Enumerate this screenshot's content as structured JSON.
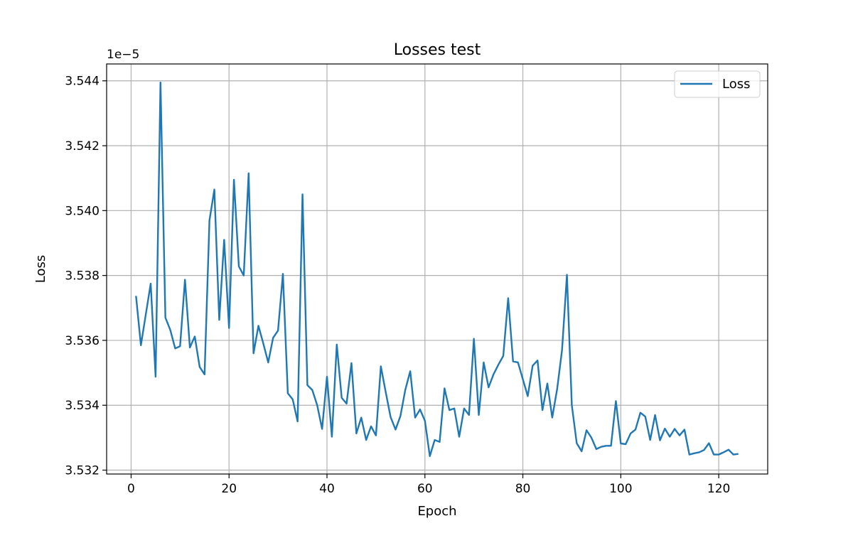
{
  "chart_data": {
    "type": "line",
    "title": "Losses test",
    "xlabel": "Epoch",
    "ylabel": "Loss",
    "y_offset_label": "1e−5",
    "xlim": [
      -5,
      130
    ],
    "ylim": [
      3.53188,
      3.54452
    ],
    "x_ticks": [
      0,
      20,
      40,
      60,
      80,
      100,
      120
    ],
    "x_tick_labels": [
      "0",
      "20",
      "40",
      "60",
      "80",
      "100",
      "120"
    ],
    "y_ticks": [
      3.532,
      3.534,
      3.536,
      3.538,
      3.54,
      3.542,
      3.544
    ],
    "y_tick_labels": [
      "3.532",
      "3.534",
      "3.536",
      "3.538",
      "3.540",
      "3.542",
      "3.544"
    ],
    "grid": true,
    "legend_position": "top-right",
    "series": [
      {
        "name": "Loss",
        "color": "#1f77b4",
        "x": [
          1,
          2,
          3,
          4,
          5,
          6,
          7,
          8,
          9,
          10,
          11,
          12,
          13,
          14,
          15,
          16,
          17,
          18,
          19,
          20,
          21,
          22,
          23,
          24,
          25,
          26,
          27,
          28,
          29,
          30,
          31,
          32,
          33,
          34,
          35,
          36,
          37,
          38,
          39,
          40,
          41,
          42,
          43,
          44,
          45,
          46,
          47,
          48,
          49,
          50,
          51,
          52,
          53,
          54,
          55,
          56,
          57,
          58,
          59,
          60,
          61,
          62,
          63,
          64,
          65,
          66,
          67,
          68,
          69,
          70,
          71,
          72,
          73,
          74,
          75,
          76,
          77,
          78,
          79,
          80,
          81,
          82,
          83,
          84,
          85,
          86,
          87,
          88,
          89,
          90,
          91,
          92,
          93,
          94,
          95,
          96,
          97,
          98,
          99,
          100,
          101,
          102,
          103,
          104,
          105,
          106,
          107,
          108,
          109,
          110,
          111,
          112,
          113,
          114,
          115,
          116,
          117,
          118,
          119,
          120,
          121,
          122,
          123,
          124
        ],
        "values": [
          3.53737,
          3.53585,
          3.5368,
          3.53775,
          3.53488,
          3.54395,
          3.5367,
          3.53632,
          3.53575,
          3.53582,
          3.53787,
          3.53578,
          3.53612,
          3.53518,
          3.53495,
          3.5397,
          3.54065,
          3.53663,
          3.5391,
          3.53638,
          3.54095,
          3.53828,
          3.538,
          3.54115,
          3.5356,
          3.53645,
          3.5359,
          3.53532,
          3.53608,
          3.5363,
          3.53805,
          3.53437,
          3.53418,
          3.5335,
          3.5405,
          3.53462,
          3.53447,
          3.534,
          3.53327,
          3.53488,
          3.53303,
          3.53587,
          3.53423,
          3.53405,
          3.5353,
          3.53313,
          3.53362,
          3.53293,
          3.53335,
          3.53307,
          3.5352,
          3.5344,
          3.53363,
          3.53325,
          3.53367,
          3.53448,
          3.53505,
          3.53362,
          3.53387,
          3.53352,
          3.53243,
          3.53293,
          3.53287,
          3.53452,
          3.53385,
          3.5339,
          3.53303,
          3.5339,
          3.5337,
          3.53605,
          3.5337,
          3.53532,
          3.53455,
          3.53495,
          3.53525,
          3.53552,
          3.5373,
          3.53535,
          3.53532,
          3.5348,
          3.53428,
          3.53522,
          3.53538,
          3.53385,
          3.53467,
          3.53362,
          3.5345,
          3.5357,
          3.53802,
          3.534,
          3.53283,
          3.53258,
          3.53323,
          3.533,
          3.53265,
          3.53272,
          3.53275,
          3.53275,
          3.53413,
          3.53282,
          3.5328,
          3.53313,
          3.53325,
          3.53377,
          3.53365,
          3.53293,
          3.5337,
          3.53292,
          3.53328,
          3.53303,
          3.53327,
          3.53307,
          3.53325,
          3.53248,
          3.53252,
          3.53255,
          3.53262,
          3.53283,
          3.53248,
          3.53248,
          3.53255,
          3.53263,
          3.53248,
          3.5325
        ]
      }
    ]
  }
}
